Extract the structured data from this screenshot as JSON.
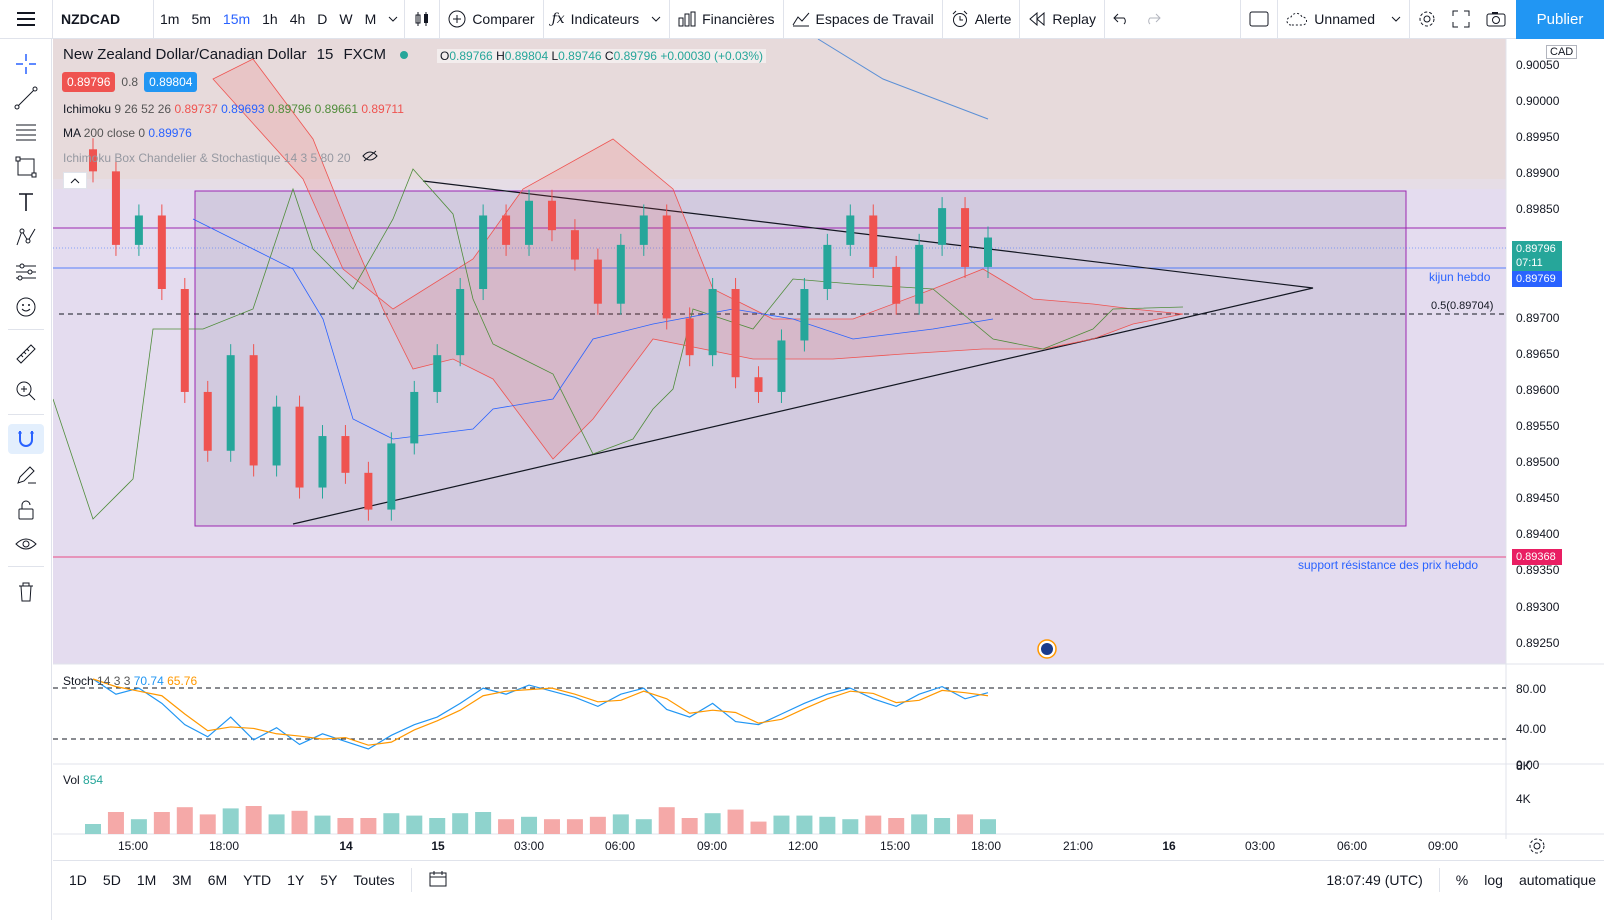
{
  "colors": {
    "accent": "#2962ff",
    "bull": "#26a69a",
    "bear": "#ef5350",
    "publish": "#2196f3",
    "box": "#9c27b0",
    "support": "#e91e63"
  },
  "topbar": {
    "symbol": "NZDCAD",
    "intervals": [
      "1m",
      "5m",
      "15m",
      "1h",
      "4h",
      "D",
      "W",
      "M"
    ],
    "active_interval": "15m",
    "compare": "Comparer",
    "indicators": "Indicateurs",
    "financials": "Financières",
    "workspaces": "Espaces de Travail",
    "alert": "Alerte",
    "replay": "Replay",
    "layout_name": "Unnamed",
    "publish": "Publier"
  },
  "legend": {
    "title": "New Zealand Dollar/Canadian Dollar",
    "interval": "15",
    "source": "FXCM",
    "o": "0.89766",
    "h": "0.89804",
    "l": "0.89746",
    "c": "0.89796",
    "change": "+0.00030 (+0.03%)",
    "bid": "0.89796",
    "spread": "0.8",
    "ask": "0.89804",
    "ichimoku_name": "Ichimoku",
    "ichimoku_params": "9 26 52 26",
    "ichimoku_vals": [
      "0.89737",
      "0.89693",
      "0.89796",
      "0.89661",
      "0.89711"
    ],
    "ma_name": "MA",
    "ma_params": "200 close 0",
    "ma_val": "0.89976",
    "hidden_indicator": "Ichimoku Box Chandelier & Stochastique 14 3 5 80 20",
    "stoch_name": "Stoch",
    "stoch_params": "14 3 3",
    "stoch_k": "70.74",
    "stoch_d": "65.76",
    "vol_name": "Vol",
    "vol_val": "854"
  },
  "price_axis": {
    "currency": "CAD",
    "ticks": [
      "0.90050",
      "0.90000",
      "0.89950",
      "0.89900",
      "0.89850",
      "0.89800",
      "0.89750",
      "0.89700",
      "0.89650",
      "0.89600",
      "0.89550",
      "0.89500",
      "0.89450",
      "0.89400",
      "0.89350",
      "0.89300",
      "0.89250"
    ],
    "last_price": "0.89796",
    "countdown": "07:11",
    "kijun_price": "0.89769",
    "kijun_label": "kijun hebdo",
    "support_price": "0.89368",
    "support_label": "support résistance des prix hebdo",
    "fib_label": "0.5(0.89704)",
    "stoch_ticks": [
      "80.00",
      "40.00",
      "0.00"
    ],
    "vol_ticks": [
      "8K",
      "4K"
    ]
  },
  "time_axis": [
    "15:00",
    "18:00",
    "14",
    "15",
    "03:00",
    "06:00",
    "09:00",
    "12:00",
    "15:00",
    "18:00",
    "21:00",
    "16",
    "03:00",
    "06:00",
    "09:00"
  ],
  "bottombar": {
    "ranges": [
      "1D",
      "5D",
      "1M",
      "3M",
      "6M",
      "YTD",
      "1Y",
      "5Y",
      "Toutes"
    ],
    "clock": "18:07:49 (UTC)",
    "pct": "%",
    "log": "log",
    "auto": "automatique"
  },
  "chart_data": {
    "type": "candlestick",
    "symbol": "NZDCAD",
    "interval": "15",
    "ylim": [
      0.8921,
      0.9006
    ],
    "note": "approximate closes read from candles",
    "closes": [
      0.8988,
      0.8978,
      0.8982,
      0.8972,
      0.8958,
      0.895,
      0.8963,
      0.8948,
      0.8956,
      0.8945,
      0.8952,
      0.8947,
      0.8942,
      0.8951,
      0.8958,
      0.8963,
      0.8972,
      0.8982,
      0.8978,
      0.8984,
      0.898,
      0.8976,
      0.897,
      0.8978,
      0.8982,
      0.8968,
      0.8963,
      0.8972,
      0.896,
      0.8958,
      0.8965,
      0.8972,
      0.8978,
      0.8982,
      0.8975,
      0.897,
      0.8978,
      0.8983,
      0.8975,
      0.8979
    ]
  }
}
